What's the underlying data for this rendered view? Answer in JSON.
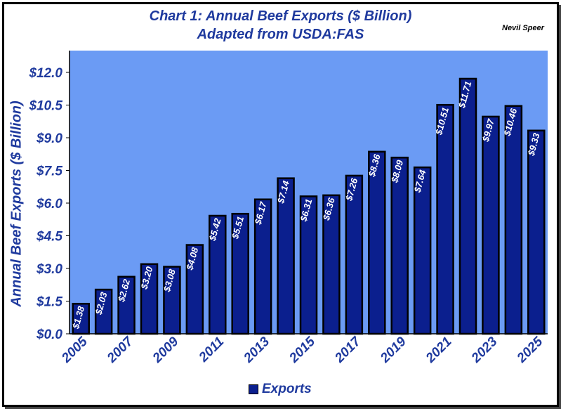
{
  "title_line1": "Chart 1:  Annual Beef Exports ($ Billion)",
  "title_line2": "Adapted from USDA:FAS",
  "author": "Nevil Speer",
  "colors": {
    "plot_bg": "#6b9bf4",
    "bar_fill": "#0b1f8e",
    "bar_stroke": "#000000",
    "text": "#1f3a9e",
    "label": "#ffffff"
  },
  "chart_data": {
    "type": "bar",
    "ylabel": "Annual Beef Exports ($ Billion)",
    "xlabel": "",
    "ylim": [
      0,
      12.0
    ],
    "yticks": [
      "$0.0",
      "$1.5",
      "$3.0",
      "$4.5",
      "$6.0",
      "$7.5",
      "$9.0",
      "$10.5",
      "$12.0"
    ],
    "categories": [
      "2005",
      "2006",
      "2007",
      "2008",
      "2009",
      "2010",
      "2011",
      "2012",
      "2013",
      "2014",
      "2015",
      "2016",
      "2017",
      "2018",
      "2019",
      "2020",
      "2021",
      "2022",
      "2023",
      "2024",
      "2025"
    ],
    "x_tick_labels": [
      "2005",
      "",
      "2007",
      "",
      "2009",
      "",
      "2011",
      "",
      "2013",
      "",
      "2015",
      "",
      "2017",
      "",
      "2019",
      "",
      "2021",
      "",
      "2023",
      "",
      "2025"
    ],
    "series": [
      {
        "name": "Exports",
        "values": [
          1.38,
          2.03,
          2.62,
          3.2,
          3.08,
          4.08,
          5.42,
          5.51,
          6.17,
          7.14,
          6.31,
          6.36,
          7.26,
          8.36,
          8.09,
          7.64,
          10.51,
          11.71,
          9.97,
          10.46,
          9.33
        ],
        "labels": [
          "$1.38",
          "$2.03",
          "$2.62",
          "$3.20",
          "$3.08",
          "$4.08",
          "$5.42",
          "$5.51",
          "$6.17",
          "$7.14",
          "$6.31",
          "$6.36",
          "$7.26",
          "$8.36",
          "$8.09",
          "$7.64",
          "$10.51",
          "$11.71",
          "$9.97",
          "$10.46",
          "$9.33"
        ]
      }
    ],
    "legend_position": "bottom",
    "grid": false
  }
}
